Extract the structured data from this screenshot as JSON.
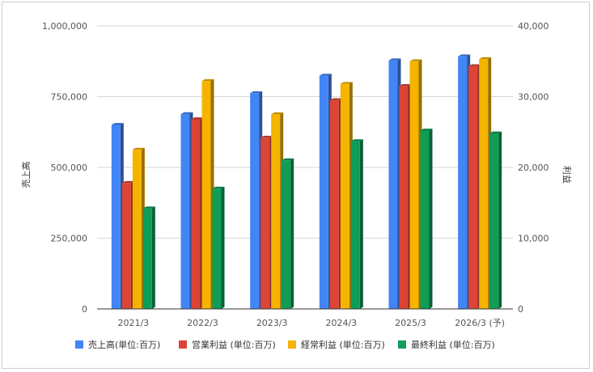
{
  "chart_data": {
    "type": "bar",
    "categories": [
      "2021/3",
      "2022/3",
      "2023/3",
      "2024/3",
      "2025/3",
      "2026/3 (予)"
    ],
    "left_axis": {
      "label": "売上高",
      "range": [
        0,
        1000000
      ],
      "ticks": [
        "0",
        "250,000",
        "500,000",
        "750,000",
        "1,000,000"
      ],
      "tick_values": [
        0,
        250000,
        500000,
        750000,
        1000000
      ]
    },
    "right_axis": {
      "label": "利益",
      "range": [
        0,
        40000
      ],
      "ticks": [
        "0",
        "10,000",
        "20,000",
        "30,000",
        "40,000"
      ],
      "tick_values": [
        0,
        10000,
        20000,
        30000,
        40000
      ]
    },
    "series": [
      {
        "name": "売上高(単位:百万)",
        "axis": "left",
        "color": "#4285f4",
        "values": [
          650000,
          688000,
          762000,
          824000,
          878000,
          892000
        ]
      },
      {
        "name": "営業利益 (単位:百万)",
        "axis": "right",
        "color": "#db4437",
        "values": [
          17800,
          26800,
          24200,
          29500,
          31500,
          34300
        ]
      },
      {
        "name": "経常利益 (単位:百万)",
        "axis": "right",
        "color": "#f4b400",
        "values": [
          22500,
          32200,
          27500,
          31800,
          35000,
          35300
        ]
      },
      {
        "name": "最終利益 (単位:百万)",
        "axis": "right",
        "color": "#0f9d58",
        "values": [
          14200,
          17000,
          21000,
          23700,
          25200,
          24800
        ]
      }
    ],
    "grid": true,
    "legend_position": "bottom"
  }
}
